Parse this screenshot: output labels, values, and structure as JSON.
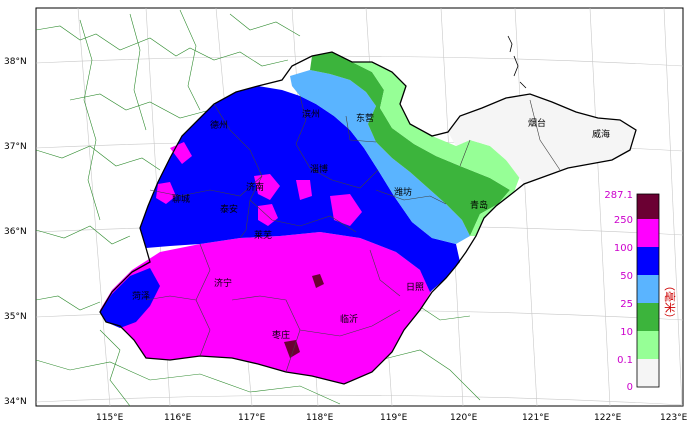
{
  "latitude_labels": [
    "38°N",
    "37°N",
    "36°N",
    "35°N",
    "34°N"
  ],
  "longitude_labels": [
    "115°E",
    "116°E",
    "117°E",
    "118°E",
    "119°E",
    "120°E",
    "121°E",
    "122°E",
    "123°E"
  ],
  "cities": [
    {
      "id": "dezhou",
      "name": "德州"
    },
    {
      "id": "binzhou",
      "name": "滨州"
    },
    {
      "id": "dongying",
      "name": "东营"
    },
    {
      "id": "yantai",
      "name": "烟台"
    },
    {
      "id": "weihai",
      "name": "威海"
    },
    {
      "id": "zibo",
      "name": "淄博"
    },
    {
      "id": "jinan",
      "name": "济南"
    },
    {
      "id": "liaocheng",
      "name": "聊城"
    },
    {
      "id": "weifang",
      "name": "潍坊"
    },
    {
      "id": "qingdao",
      "name": "青岛"
    },
    {
      "id": "taian",
      "name": "泰安"
    },
    {
      "id": "laiwu",
      "name": "莱芜"
    },
    {
      "id": "jining",
      "name": "济宁"
    },
    {
      "id": "heze",
      "name": "菏泽"
    },
    {
      "id": "rizhao",
      "name": "日照"
    },
    {
      "id": "zaozhuang",
      "name": "枣庄"
    },
    {
      "id": "linyi",
      "name": "临沂"
    }
  ],
  "legend": {
    "unit": "（毫米）",
    "ticks": [
      "287.1",
      "250",
      "100",
      "50",
      "25",
      "10",
      "0.1",
      "0"
    ],
    "colors": {
      "c250_287": "#6b0033",
      "c100_250": "#ff00ff",
      "c50_100": "#0000ff",
      "c25_50": "#5ab4ff",
      "c10_25": "#3cb43c",
      "c01_10": "#96ff96",
      "c0_01": "#f5f5f5"
    }
  }
}
